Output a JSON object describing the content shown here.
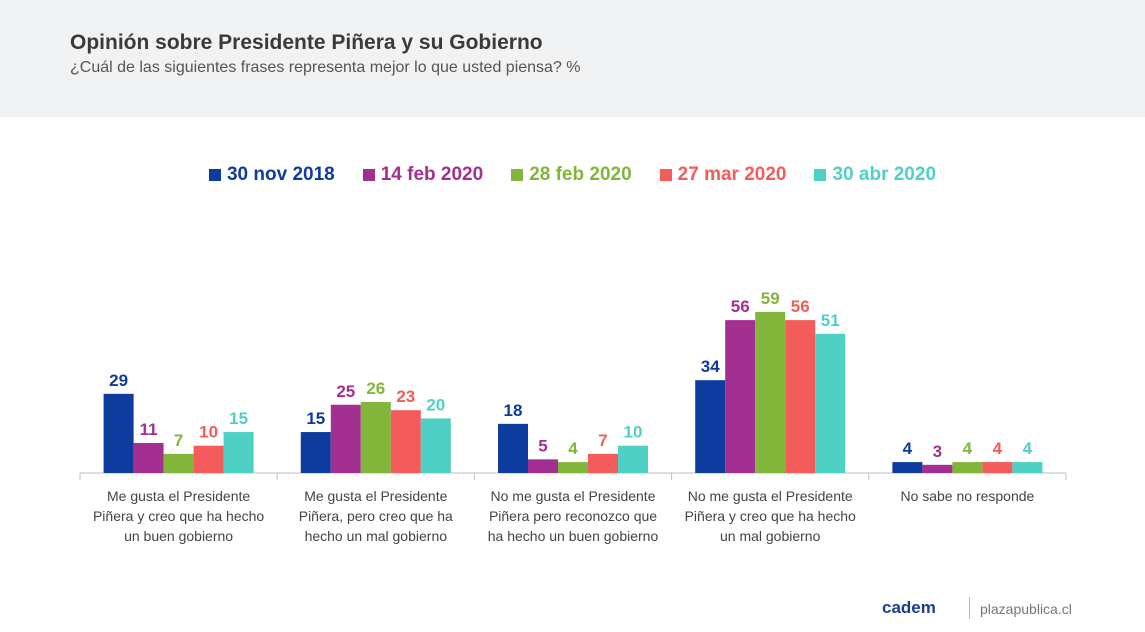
{
  "header": {
    "title": "Opinión sobre Presidente Piñera y su Gobierno",
    "subtitle": "¿Cuál de las siguientes frases representa mejor lo que usted piensa? %"
  },
  "footer": {
    "logo": "cadem",
    "site": "plazapublica.cl"
  },
  "chart_data": {
    "type": "bar",
    "title": "Opinión sobre Presidente Piñera y su Gobierno",
    "subtitle": "¿Cuál de las siguientes frases representa mejor lo que usted piensa? %",
    "xlabel": "",
    "ylabel": "%",
    "ylim": [
      0,
      65
    ],
    "grid": false,
    "legend_position": "top-center",
    "categories": [
      [
        "Me gusta el Presidente",
        "Piñera y creo que ha hecho",
        "un buen gobierno"
      ],
      [
        "Me gusta el Presidente",
        "Piñera, pero creo que ha",
        "hecho un mal gobierno"
      ],
      [
        "No me gusta el Presidente",
        "Piñera pero reconozco que",
        "ha hecho un buen gobierno"
      ],
      [
        "No me gusta el Presidente",
        "Piñera y creo que ha hecho",
        "un mal gobierno"
      ],
      [
        "No sabe no responde"
      ]
    ],
    "series": [
      {
        "name": "30 nov 2018",
        "color": "#0d3c9e",
        "values": [
          29,
          15,
          18,
          34,
          4
        ]
      },
      {
        "name": "14 feb 2020",
        "color": "#a33090",
        "values": [
          11,
          25,
          5,
          56,
          3
        ]
      },
      {
        "name": "28 feb 2020",
        "color": "#82b63b",
        "values": [
          7,
          26,
          4,
          59,
          4
        ]
      },
      {
        "name": "27 mar 2020",
        "color": "#f45b5b",
        "values": [
          10,
          23,
          7,
          56,
          4
        ]
      },
      {
        "name": "30 abr 2020",
        "color": "#4fd0c4",
        "values": [
          15,
          20,
          10,
          51,
          4
        ]
      }
    ]
  }
}
